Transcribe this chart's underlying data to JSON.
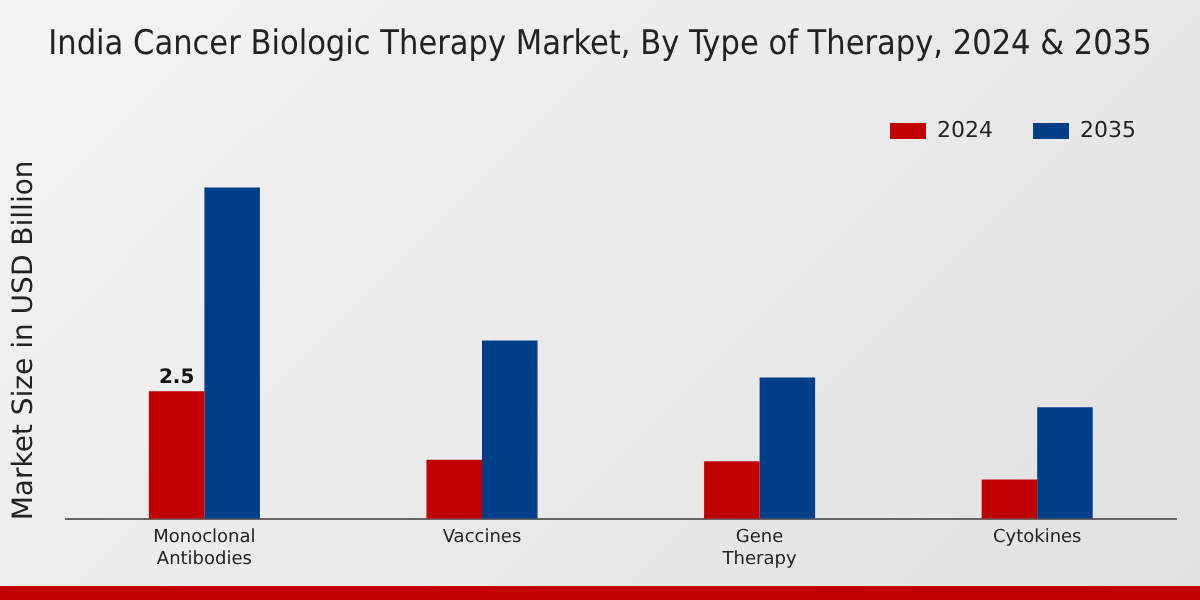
{
  "chart_data": {
    "type": "bar",
    "title": "India Cancer Biologic Therapy Market, By Type of Therapy, 2024 & 2035",
    "ylabel": "Market Size in USD Billion",
    "categories": [
      "Monoclonal Antibodies",
      "Vaccines",
      "Gene Therapy",
      "Cytokines"
    ],
    "series": [
      {
        "name": "2024",
        "color": "#c00000",
        "values": [
          2.5,
          1.16,
          1.13,
          0.77
        ],
        "value_labels": [
          "2.5",
          null,
          null,
          null
        ]
      },
      {
        "name": "2035",
        "color": "#003f87",
        "values": [
          6.5,
          3.5,
          2.77,
          2.19
        ]
      }
    ],
    "legend": "top right",
    "grid": false
  }
}
